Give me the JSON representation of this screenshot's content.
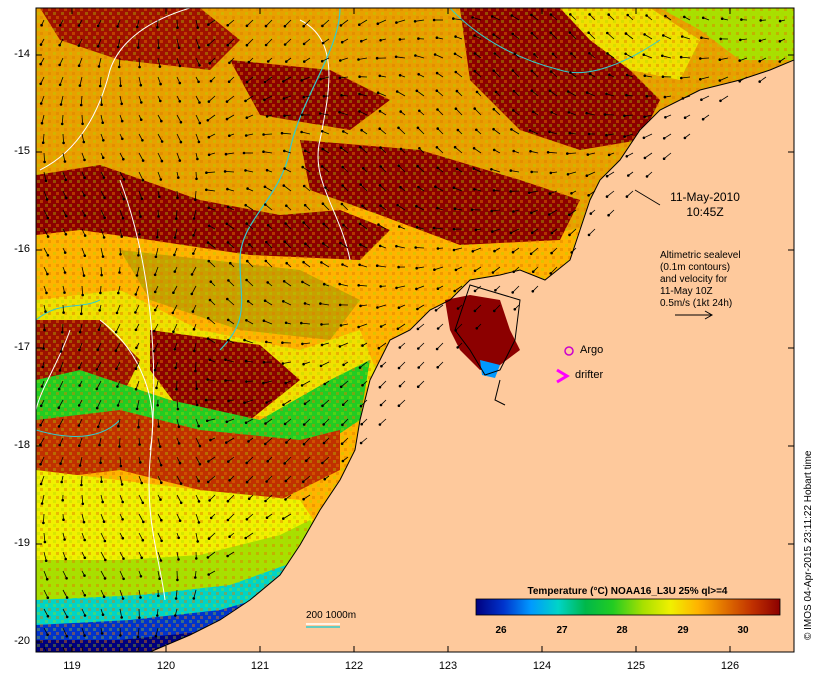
{
  "map": {
    "date_label": [
      "11-May-2010",
      "10:45Z"
    ],
    "altimetry_note": [
      "Altimetric sealevel",
      "(0.1m contours)",
      "and velocity for",
      "11-May 10Z",
      "0.5m/s (1kt 24h)"
    ],
    "argo_label": "Argo",
    "drifter_label": "drifter",
    "contour_key_label": "200  1000m",
    "credit": "© IMOS 04-Apr-2015 23:11:22 Hobart time",
    "y_axis_ticks": [
      "-14",
      "-15",
      "-16",
      "-17",
      "-18",
      "-19",
      "-20"
    ],
    "x_axis_ticks": [
      "119",
      "120",
      "121",
      "122",
      "123",
      "124",
      "125",
      "126"
    ],
    "colorbar": {
      "title": "Temperature (°C) NOAA16_L3U 25% ql>=4",
      "ticks": [
        "26",
        "27",
        "28",
        "29",
        "30"
      ],
      "colors": [
        "#00007f",
        "#0033cc",
        "#0099ff",
        "#00d4c8",
        "#00b84a",
        "#22cc22",
        "#a8e000",
        "#f0f000",
        "#ffb300",
        "#e07000",
        "#c03000",
        "#8c0000"
      ]
    },
    "colors": {
      "land": "#fec99c",
      "contour_200m": "#ffffff",
      "contour_1000m": "#33cccc",
      "argo_marker": "#cc00cc",
      "drifter_marker": "#ff00ff"
    }
  }
}
